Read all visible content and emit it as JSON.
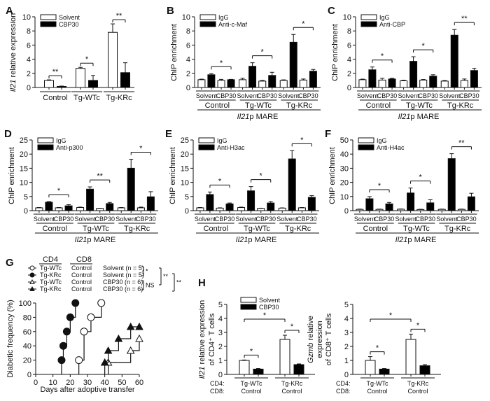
{
  "chart_data": [
    {
      "panel": "A",
      "type": "bar",
      "ylabel_italic": "Il21",
      "ylabel_rest": " relative expression",
      "ylim": [
        0,
        10
      ],
      "yticks": [
        0,
        2,
        4,
        6,
        8,
        10
      ],
      "categories": [
        "Control",
        "Tg-WTc",
        "Tg-KRc"
      ],
      "series": [
        {
          "name": "Solvent",
          "fill": "#ffffff",
          "values": [
            1.0,
            2.7,
            7.8
          ],
          "errors": [
            0.08,
            0.15,
            1.2
          ]
        },
        {
          "name": "CBP30",
          "fill": "#000000",
          "values": [
            0.15,
            1.0,
            2.1
          ],
          "errors": [
            0.05,
            0.7,
            1.4
          ]
        }
      ],
      "significance": [
        "**",
        "*",
        "**"
      ]
    },
    {
      "panel": "B",
      "type": "bar",
      "ylabel": "ChIP enrichment",
      "xlabel_italic": "Il21",
      "xlabel_rest": "p MARE",
      "ylim": [
        0,
        10
      ],
      "yticks": [
        0,
        2,
        4,
        6,
        8,
        10
      ],
      "groups": [
        "Control",
        "Tg-WTc",
        "Tg-KRc"
      ],
      "subgroups": [
        "Solvent",
        "CBP30"
      ],
      "series": [
        {
          "name": "IgG",
          "fill": "#ffffff",
          "values": [
            1.1,
            1.0,
            1.1,
            0.9,
            1.0,
            1.05
          ],
          "errors": [
            0.08,
            0.15,
            0.2,
            0.1,
            0.08,
            0.15
          ]
        },
        {
          "name": "Anti-c-Maf",
          "fill": "#000000",
          "values": [
            1.8,
            1.1,
            3.0,
            1.7,
            6.4,
            2.3
          ],
          "errors": [
            0.15,
            0.05,
            0.5,
            0.45,
            1.1,
            0.25
          ]
        }
      ],
      "significance": [
        "*",
        "*",
        "*"
      ]
    },
    {
      "panel": "C",
      "type": "bar",
      "ylabel": "ChIP enrichment",
      "xlabel_italic": "Il21",
      "xlabel_rest": "p MARE",
      "ylim": [
        0,
        10
      ],
      "yticks": [
        0,
        2,
        4,
        6,
        8,
        10
      ],
      "groups": [
        "Control",
        "Tg-WTc",
        "Tg-KRc"
      ],
      "subgroups": [
        "Solvent",
        "CBP30"
      ],
      "series": [
        {
          "name": "IgG",
          "fill": "#ffffff",
          "values": [
            1.1,
            1.05,
            0.95,
            1.05,
            0.9,
            1.0
          ],
          "errors": [
            0.08,
            0.25,
            0.08,
            0.08,
            0.08,
            0.2
          ]
        },
        {
          "name": "Anti-CBP",
          "fill": "#000000",
          "values": [
            2.5,
            1.2,
            3.7,
            1.6,
            7.4,
            2.4
          ],
          "errors": [
            0.4,
            0.1,
            0.65,
            0.2,
            0.8,
            0.3
          ]
        }
      ],
      "significance": [
        "*",
        "*",
        "**"
      ]
    },
    {
      "panel": "D",
      "type": "bar",
      "ylabel": "ChIP enrichment",
      "xlabel_italic": "Il21",
      "xlabel_rest": "p MARE",
      "ylim": [
        0,
        25
      ],
      "yticks": [
        0,
        5,
        10,
        15,
        20,
        25
      ],
      "groups": [
        "Control",
        "Tg-WTc",
        "Tg-KRc"
      ],
      "subgroups": [
        "Solvent",
        "CBP30"
      ],
      "series": [
        {
          "name": "IgG",
          "fill": "#ffffff",
          "values": [
            1.0,
            1.0,
            1.1,
            0.8,
            1.0,
            1.0
          ],
          "errors": [
            0.1,
            0.1,
            0.15,
            0.05,
            0.1,
            0.25
          ]
        },
        {
          "name": "Anti-p300",
          "fill": "#000000",
          "values": [
            3.0,
            1.7,
            7.6,
            2.5,
            15.0,
            4.9
          ],
          "errors": [
            0.2,
            0.4,
            0.8,
            0.4,
            3.2,
            1.8
          ]
        }
      ],
      "significance": [
        "*",
        "**",
        "*"
      ]
    },
    {
      "panel": "E",
      "type": "bar",
      "ylabel": "ChIP enrichment",
      "xlabel_italic": "Il21",
      "xlabel_rest": "p MARE",
      "ylim": [
        0,
        25
      ],
      "yticks": [
        0,
        5,
        10,
        15,
        20,
        25
      ],
      "groups": [
        "Control",
        "Tg-WTc",
        "Tg-KRc"
      ],
      "subgroups": [
        "Solvent",
        "CBP30"
      ],
      "series": [
        {
          "name": "IgG",
          "fill": "#ffffff",
          "values": [
            1.0,
            0.9,
            1.1,
            0.8,
            0.9,
            1.0
          ],
          "errors": [
            0.1,
            0.1,
            0.15,
            0.08,
            0.08,
            0.1
          ]
        },
        {
          "name": "Anti-H3ac",
          "fill": "#000000",
          "values": [
            5.7,
            2.4,
            7.0,
            2.7,
            18.3,
            4.7
          ],
          "errors": [
            0.9,
            0.3,
            1.5,
            0.5,
            2.9,
            0.6
          ]
        }
      ],
      "significance": [
        "*",
        "*",
        "*"
      ]
    },
    {
      "panel": "F",
      "type": "bar",
      "ylabel": "ChIP enrichment",
      "xlabel_italic": "Il21",
      "xlabel_rest": "p MARE",
      "ylim": [
        0,
        50
      ],
      "yticks": [
        0,
        10,
        20,
        30,
        40,
        50
      ],
      "groups": [
        "Control",
        "Tg-WTc",
        "Tg-KRc"
      ],
      "subgroups": [
        "Solvent",
        "CBP30"
      ],
      "series": [
        {
          "name": "IgG",
          "fill": "#ffffff",
          "values": [
            0.9,
            0.9,
            1.0,
            0.8,
            0.9,
            0.9
          ],
          "errors": [
            0.2,
            0.2,
            0.2,
            0.2,
            0.2,
            0.2
          ]
        },
        {
          "name": "Anti-H4ac",
          "fill": "#000000",
          "values": [
            8.4,
            4.8,
            12.5,
            5.5,
            36.8,
            9.8
          ],
          "errors": [
            1.5,
            1.0,
            3.5,
            2.2,
            3.5,
            2.5
          ]
        }
      ],
      "significance": [
        "*",
        "*",
        "**"
      ]
    },
    {
      "panel": "G",
      "type": "line",
      "step": true,
      "xlabel": "Days after adoptive transfer",
      "ylabel": "Diabetic frequency (%)",
      "xlim": [
        0,
        60
      ],
      "ylim": [
        0,
        100
      ],
      "xticks": [
        0,
        10,
        20,
        30,
        40,
        50,
        60
      ],
      "yticks": [
        0,
        20,
        40,
        60,
        80,
        100
      ],
      "legend_headers": [
        "CD4",
        "CD8"
      ],
      "series": [
        {
          "cd4": "Tg-WTc",
          "cd8": "Control",
          "treatment": "Solvent",
          "n_text": "(n = 5)",
          "marker": "circle-open",
          "x": [
            25,
            28,
            32,
            38
          ],
          "y": [
            20,
            60,
            80,
            100
          ],
          "start": 25
        },
        {
          "cd4": "Tg-KRc",
          "cd8": "Control",
          "treatment": "Solvent",
          "n_text": "(n = 5)",
          "marker": "circle-filled",
          "x": [
            15,
            16,
            18,
            20,
            23
          ],
          "y": [
            20,
            40,
            60,
            80,
            100
          ],
          "start": 15
        },
        {
          "cd4": "Tg-WTc",
          "cd8": "Control",
          "treatment": "CBP30",
          "n_text": "(n = 6)",
          "marker": "triangle-open",
          "x": [
            42,
            55,
            60
          ],
          "y": [
            16.7,
            33.3,
            50
          ],
          "start": 42
        },
        {
          "cd4": "Tg-KRc",
          "cd8": "Control",
          "treatment": "CBP30",
          "n_text": "(n = 6)",
          "marker": "triangle-filled",
          "x": [
            40,
            42,
            48,
            55,
            60
          ],
          "y": [
            16.7,
            33.3,
            50,
            66.7,
            66.7
          ],
          "start": 40
        }
      ],
      "significance": {
        "inner_top": "*",
        "inner_bottom": "NS",
        "middle": "**",
        "outer": "**"
      }
    },
    {
      "panel": "H1",
      "type": "bar",
      "ylabel_italic": "Il21",
      "ylabel_rest": " relative expression",
      "ylabel_line2": "of CD4⁺ T cells",
      "ylim": [
        0,
        5
      ],
      "yticks": [
        0,
        1,
        2,
        3,
        4,
        5
      ],
      "row_labels": [
        "CD4:",
        "CD8:"
      ],
      "categories": [
        [
          "Tg-WTc",
          "Control"
        ],
        [
          "Tg-KRc",
          "Control"
        ]
      ],
      "series": [
        {
          "name": "Solvent",
          "fill": "#ffffff",
          "values": [
            1.0,
            2.5
          ],
          "errors": [
            0.03,
            0.3
          ]
        },
        {
          "name": "CBP30",
          "fill": "#000000",
          "values": [
            0.38,
            0.7
          ],
          "errors": [
            0.04,
            0.05
          ]
        }
      ],
      "significance": [
        "*",
        "*",
        "*"
      ]
    },
    {
      "panel": "H2",
      "type": "bar",
      "ylabel_italic": "Gzmb",
      "ylabel_rest": " relative",
      "ylabel_line2": "expression",
      "ylabel_line3": "of CD8⁺ T cells",
      "ylim": [
        0,
        5
      ],
      "yticks": [
        0,
        1,
        2,
        3,
        4,
        5
      ],
      "row_labels": [
        "CD4:",
        "CD8:"
      ],
      "categories": [
        [
          "Tg-WTc",
          "Control"
        ],
        [
          "Tg-KRc",
          "Control"
        ]
      ],
      "series": [
        {
          "name": "Solvent",
          "fill": "#ffffff",
          "values": [
            1.0,
            2.5
          ],
          "errors": [
            0.27,
            0.38
          ]
        },
        {
          "name": "CBP30",
          "fill": "#000000",
          "values": [
            0.38,
            0.62
          ],
          "errors": [
            0.04,
            0.08
          ]
        }
      ],
      "significance": [
        "*",
        "*",
        "*"
      ]
    }
  ],
  "panel_labels": [
    "A",
    "B",
    "C",
    "D",
    "E",
    "F",
    "G",
    "H"
  ]
}
